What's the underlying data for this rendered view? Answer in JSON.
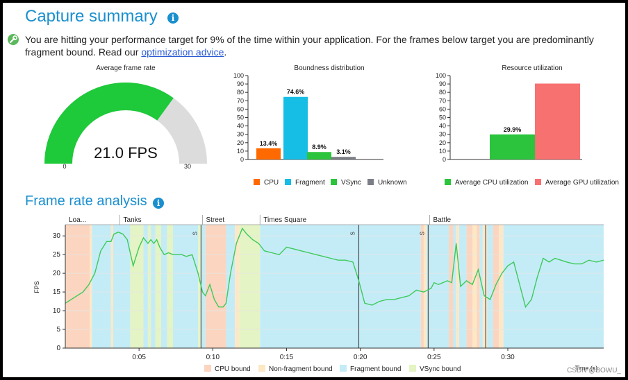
{
  "capture": {
    "title": "Capture summary",
    "summary_text": "You are hitting your performance target for 9% of the time within your application. For the frames below target you are predominantly fragment bound. Read our ",
    "link_text": "optimization advice",
    "link_suffix": "."
  },
  "frame_rate_section": {
    "title": "Frame rate analysis"
  },
  "watermark": "CSDN @BOWU_",
  "colors": {
    "cpu": "#ff6a00",
    "fragment": "#16bde5",
    "vsync": "#2bc43c",
    "unknown": "#7b7f85",
    "gpu_util": "#f87171",
    "gauge_fill": "#1ec93a",
    "gauge_bg": "#dcdcdc",
    "line": "#3ec95a"
  },
  "chart_data": [
    {
      "type": "gauge",
      "title": "Average frame rate",
      "value": 21.0,
      "value_label": "21.0 FPS",
      "min": 0,
      "max": 30,
      "min_label": "0",
      "max_label": "30"
    },
    {
      "type": "bar",
      "title": "Boundness distribution",
      "categories": [
        "CPU",
        "Fragment",
        "VSync",
        "Unknown"
      ],
      "values": [
        13.4,
        74.6,
        8.9,
        3.1
      ],
      "value_labels": [
        "13.4%",
        "74.6%",
        "8.9%",
        "3.1%"
      ],
      "yticks": [
        "0",
        "10",
        "20",
        "30",
        "40",
        "50",
        "60",
        "70",
        "80",
        "90",
        "100"
      ],
      "ylim": [
        0,
        100
      ],
      "legend": [
        "CPU",
        "Fragment",
        "VSync",
        "Unknown"
      ]
    },
    {
      "type": "bar",
      "title": "Resource utilization",
      "categories": [
        "Average CPU utilization",
        "Average GPU utilization"
      ],
      "values": [
        29.9,
        90.5
      ],
      "value_labels": [
        "29.9%",
        ""
      ],
      "yticks": [
        "0",
        "10",
        "20",
        "30",
        "40",
        "50",
        "60",
        "70",
        "80",
        "90",
        "100"
      ],
      "ylim": [
        0,
        100
      ],
      "legend": [
        "Average CPU utilization",
        "Average GPU utilization"
      ]
    },
    {
      "type": "line",
      "title": "Frame rate analysis",
      "xlabel": "Time (s)",
      "ylabel": "FPS",
      "xlim": [
        0,
        36.5
      ],
      "ylim": [
        0,
        33
      ],
      "xticks": [
        5,
        10,
        15,
        20,
        25,
        30
      ],
      "xtick_labels": [
        "0:05",
        "0:10",
        "0:15",
        "0:20",
        "0:25",
        "0:30"
      ],
      "yticks": [
        "0",
        "5",
        "10",
        "15",
        "20",
        "25",
        "30"
      ],
      "sections": [
        {
          "label": "Loa...",
          "start": 0
        },
        {
          "label": "Tanks",
          "start": 3.7
        },
        {
          "label": "Street",
          "start": 9.3
        },
        {
          "label": "Times Square",
          "start": 13.2
        },
        {
          "label": "Battle",
          "start": 24.7
        }
      ],
      "markers": [
        {
          "t": 9.2,
          "label": "S"
        },
        {
          "t": 19.9,
          "label": "S"
        },
        {
          "t": 24.6,
          "label": "S"
        }
      ],
      "extra_lines": [
        28.5
      ],
      "bands": [
        {
          "start": 0.0,
          "end": 1.65,
          "kind": "cpu"
        },
        {
          "start": 1.65,
          "end": 1.8,
          "kind": "nonfrag"
        },
        {
          "start": 1.8,
          "end": 3.1,
          "kind": "fragment"
        },
        {
          "start": 3.1,
          "end": 3.25,
          "kind": "nonfrag"
        },
        {
          "start": 3.25,
          "end": 4.4,
          "kind": "fragment"
        },
        {
          "start": 4.4,
          "end": 5.3,
          "kind": "vsync"
        },
        {
          "start": 5.3,
          "end": 5.6,
          "kind": "fragment"
        },
        {
          "start": 5.6,
          "end": 5.8,
          "kind": "vsync"
        },
        {
          "start": 5.8,
          "end": 6.1,
          "kind": "fragment"
        },
        {
          "start": 6.1,
          "end": 6.5,
          "kind": "vsync"
        },
        {
          "start": 6.5,
          "end": 6.9,
          "kind": "fragment"
        },
        {
          "start": 6.9,
          "end": 7.3,
          "kind": "vsync"
        },
        {
          "start": 7.3,
          "end": 9.0,
          "kind": "fragment"
        },
        {
          "start": 9.0,
          "end": 9.2,
          "kind": "vsync"
        },
        {
          "start": 9.2,
          "end": 9.5,
          "kind": "fragment"
        },
        {
          "start": 9.5,
          "end": 10.9,
          "kind": "cpu"
        },
        {
          "start": 10.9,
          "end": 11.5,
          "kind": "fragment"
        },
        {
          "start": 11.5,
          "end": 11.8,
          "kind": "nonfrag"
        },
        {
          "start": 11.8,
          "end": 13.2,
          "kind": "vsync"
        },
        {
          "start": 13.2,
          "end": 24.1,
          "kind": "fragment"
        },
        {
          "start": 24.1,
          "end": 24.3,
          "kind": "cpu"
        },
        {
          "start": 24.3,
          "end": 24.5,
          "kind": "nonfrag"
        },
        {
          "start": 24.5,
          "end": 26.0,
          "kind": "fragment"
        },
        {
          "start": 26.0,
          "end": 26.3,
          "kind": "cpu"
        },
        {
          "start": 26.3,
          "end": 26.5,
          "kind": "fragment"
        },
        {
          "start": 26.5,
          "end": 26.7,
          "kind": "nonfrag"
        },
        {
          "start": 26.7,
          "end": 27.2,
          "kind": "fragment"
        },
        {
          "start": 27.2,
          "end": 27.6,
          "kind": "cpu"
        },
        {
          "start": 27.6,
          "end": 27.9,
          "kind": "nonfrag"
        },
        {
          "start": 27.9,
          "end": 28.1,
          "kind": "cpu"
        },
        {
          "start": 28.1,
          "end": 28.3,
          "kind": "fragment"
        },
        {
          "start": 28.3,
          "end": 28.6,
          "kind": "nonfrag"
        },
        {
          "start": 28.6,
          "end": 29.0,
          "kind": "fragment"
        },
        {
          "start": 29.0,
          "end": 29.4,
          "kind": "cpu"
        },
        {
          "start": 29.4,
          "end": 29.7,
          "kind": "nonfrag"
        },
        {
          "start": 29.7,
          "end": 36.5,
          "kind": "fragment"
        }
      ],
      "series": [
        {
          "name": "FPS",
          "x": [
            0,
            0.6,
            1.2,
            1.6,
            2.0,
            2.4,
            2.8,
            3.1,
            3.3,
            3.6,
            3.9,
            4.2,
            4.6,
            5.0,
            5.3,
            5.6,
            5.8,
            6.0,
            6.2,
            6.4,
            6.7,
            7.0,
            7.3,
            7.6,
            7.9,
            8.2,
            8.6,
            9.0,
            9.3,
            9.5,
            9.8,
            10.1,
            10.4,
            10.7,
            10.9,
            11.2,
            11.6,
            12.0,
            12.3,
            12.7,
            13.1,
            13.5,
            14.0,
            14.5,
            15.0,
            15.5,
            16.0,
            16.5,
            17.0,
            17.5,
            18.0,
            18.5,
            19.0,
            19.5,
            19.9,
            20.3,
            20.8,
            21.3,
            21.8,
            22.3,
            22.8,
            23.3,
            23.8,
            24.3,
            24.8,
            25.0,
            25.3,
            25.6,
            25.9,
            26.2,
            26.5,
            26.8,
            27.2,
            27.6,
            28.0,
            28.4,
            28.8,
            29.2,
            29.6,
            30.0,
            30.4,
            30.8,
            31.2,
            31.6,
            32.0,
            32.4,
            32.8,
            33.2,
            33.6,
            34.0,
            34.5,
            35.0,
            35.5,
            36.0,
            36.5
          ],
          "y": [
            12,
            13.5,
            15,
            17,
            20,
            26,
            28.5,
            28.5,
            30.5,
            31,
            30.5,
            29,
            22,
            27,
            29.5,
            28,
            29,
            28,
            29,
            27,
            25,
            25.5,
            25,
            25,
            25,
            24.5,
            25,
            20,
            15,
            14,
            17,
            13,
            11,
            11,
            12,
            20,
            28,
            32,
            30.5,
            29,
            28,
            26,
            25.5,
            25,
            27,
            26.5,
            26,
            25.5,
            25,
            24.5,
            24,
            23.5,
            23.5,
            23,
            18,
            12,
            11.5,
            12.5,
            13,
            13,
            13.5,
            14,
            15.5,
            15,
            16,
            17.5,
            17,
            17.5,
            18,
            17.5,
            28,
            16.5,
            18,
            17,
            21,
            14,
            13,
            17,
            20,
            22,
            23,
            17,
            11,
            13,
            19,
            24,
            23,
            24,
            23.5,
            23,
            22.5,
            22.5,
            23.5,
            23,
            23.5
          ]
        }
      ],
      "legend": [
        {
          "label": "CPU bound",
          "color": "#fbd5bf"
        },
        {
          "label": "Non-fragment bound",
          "color": "#fde8c6"
        },
        {
          "label": "Fragment bound",
          "color": "#c4ecf7"
        },
        {
          "label": "VSync bound",
          "color": "#e4f4c4"
        }
      ],
      "band_colors": {
        "cpu": "#fbd5bf",
        "nonfrag": "#fde8c6",
        "fragment": "#c4ecf7",
        "vsync": "#e4f4c4"
      }
    }
  ]
}
